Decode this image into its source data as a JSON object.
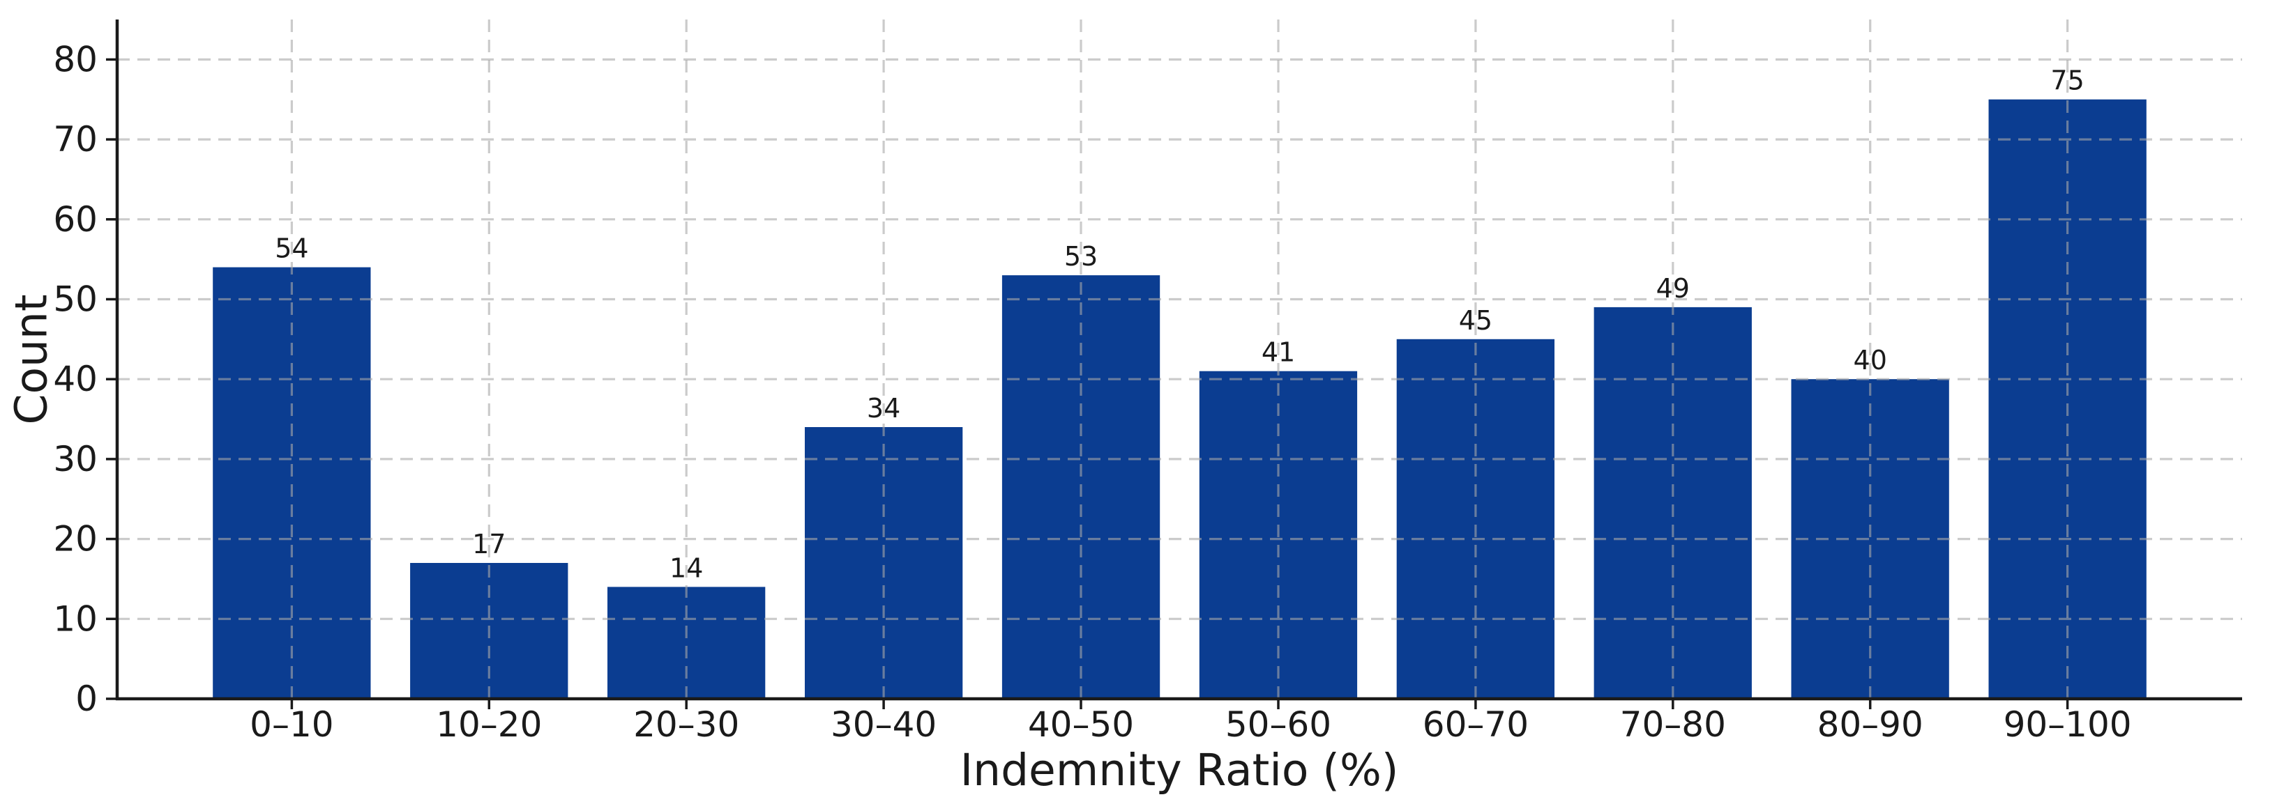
{
  "figure": {
    "background_color": "#ffffff"
  },
  "chart_data": {
    "type": "bar",
    "title": "",
    "xlabel": "Indemnity Ratio (%)",
    "ylabel": "Count",
    "categories": [
      "0–10",
      "10–20",
      "20–30",
      "30–40",
      "40–50",
      "50–60",
      "60–70",
      "70–80",
      "80–90",
      "90–100"
    ],
    "values": [
      54,
      17,
      14,
      34,
      53,
      41,
      45,
      49,
      40,
      75
    ],
    "bar_value_labels_shown": true,
    "ylim": [
      0,
      85
    ],
    "yticks": [
      0,
      10,
      20,
      30,
      40,
      50,
      60,
      70,
      80
    ],
    "bar_color": "#0b3d91",
    "axis_color": "#1a1a1a",
    "text_color": "#1a1a1a",
    "grid": {
      "show": true,
      "axis": "both",
      "line_style": "dashed",
      "color": "#a8a8a8",
      "opacity": 0.6,
      "drawn_above_bars": true
    },
    "legend_position": "none"
  }
}
